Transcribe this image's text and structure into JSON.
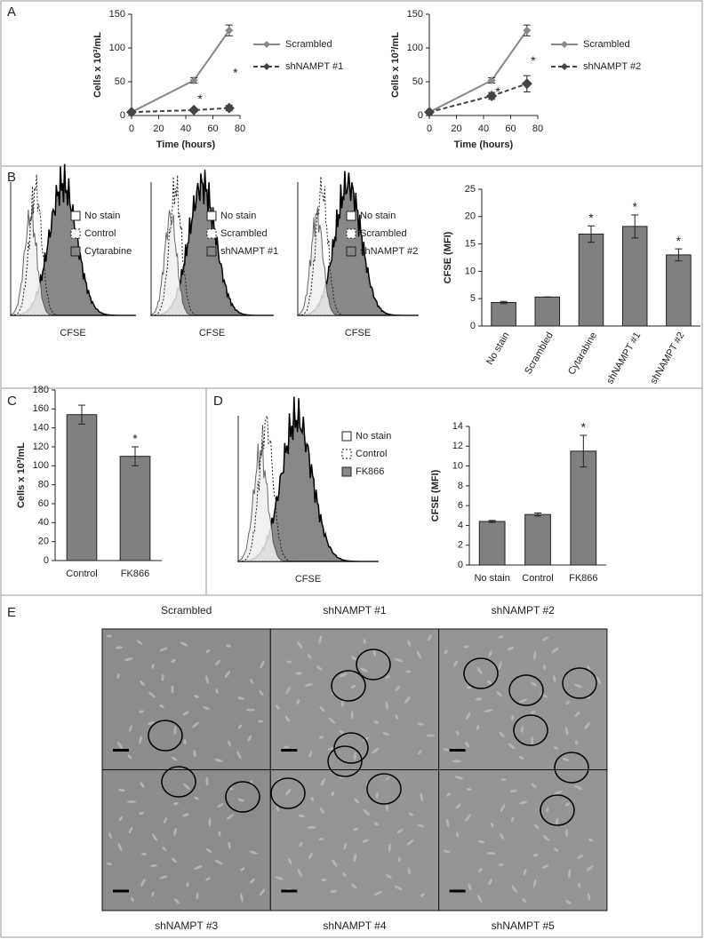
{
  "chart_data": [
    {
      "type": "line",
      "xlabel": "Time (hours)",
      "ylabel": "Cells x 10³/mL",
      "x": [
        0,
        46,
        72
      ],
      "xlim": [
        0,
        80
      ],
      "xticks": [
        0,
        20,
        40,
        60,
        80
      ],
      "ylim": [
        0,
        150
      ],
      "yticks": [
        0,
        50,
        100,
        150
      ],
      "series": [
        {
          "name": "Scrambled",
          "color": "#888888",
          "dashed": false,
          "values": [
            5,
            52,
            126
          ],
          "errors": [
            1,
            4,
            8
          ]
        },
        {
          "name": "shNAMPT #1",
          "color": "#444444",
          "dashed": true,
          "values": [
            5,
            8,
            11
          ],
          "errors": [
            1,
            1,
            4
          ],
          "annotations": [
            null,
            "*",
            "*"
          ]
        }
      ]
    },
    {
      "type": "line",
      "xlabel": "Time (hours)",
      "ylabel": "Cells x 10³/mL",
      "x": [
        0,
        46,
        72
      ],
      "xlim": [
        0,
        80
      ],
      "xticks": [
        0,
        20,
        40,
        60,
        80
      ],
      "ylim": [
        0,
        150
      ],
      "yticks": [
        0,
        50,
        100,
        150
      ],
      "series": [
        {
          "name": "Scrambled",
          "color": "#888888",
          "dashed": false,
          "values": [
            5,
            52,
            126
          ],
          "errors": [
            1,
            4,
            8
          ]
        },
        {
          "name": "shNAMPT #2",
          "color": "#444444",
          "dashed": true,
          "values": [
            5,
            29,
            47
          ],
          "errors": [
            1,
            5,
            12
          ],
          "annotations": [
            null,
            "*",
            "*"
          ]
        }
      ]
    },
    {
      "type": "bar",
      "ylabel": "CFSE (MFI)",
      "color": "#808080",
      "categories": [
        "No stain",
        "Scrambled",
        "Cytarabine",
        "shNAMPT #1",
        "shNAMPT #2"
      ],
      "values": [
        4.3,
        5.3,
        16.8,
        18.2,
        13.0
      ],
      "errors": [
        0.2,
        0,
        1.5,
        2.1,
        1.1
      ],
      "annotations": [
        null,
        null,
        "*",
        "*",
        "*"
      ],
      "ylim": [
        0,
        25
      ],
      "yticks": [
        0,
        5,
        10,
        15,
        20,
        25
      ],
      "rotate_labels": true
    },
    {
      "type": "bar",
      "ylabel": "Cells x 10³/mL",
      "color": "#808080",
      "categories": [
        "Control",
        "FK866"
      ],
      "values": [
        154,
        110
      ],
      "errors": [
        10,
        10
      ],
      "annotations": [
        null,
        "*"
      ],
      "ylim": [
        0,
        180
      ],
      "yticks": [
        0,
        20,
        40,
        60,
        80,
        100,
        120,
        140,
        160,
        180
      ],
      "rotate_labels": false
    },
    {
      "type": "bar",
      "ylabel": "CFSE (MFI)",
      "color": "#808080",
      "categories": [
        "No stain",
        "Control",
        "FK866"
      ],
      "values": [
        4.4,
        5.1,
        11.5
      ],
      "errors": [
        0.1,
        0.15,
        1.6
      ],
      "annotations": [
        null,
        null,
        "*"
      ],
      "ylim": [
        0,
        14
      ],
      "yticks": [
        0,
        2,
        4,
        6,
        8,
        10,
        12,
        14
      ],
      "rotate_labels": false
    }
  ],
  "panel_labels": [
    "A",
    "B",
    "C",
    "D",
    "E"
  ],
  "histograms": [
    {
      "legend": [
        "No stain",
        "Control",
        "Cytarabine"
      ],
      "xlabel": "CFSE"
    },
    {
      "legend": [
        "No stain",
        "Scrambled",
        "shNAMPT #1"
      ],
      "xlabel": "CFSE"
    },
    {
      "legend": [
        "No stain",
        "Scrambled",
        "shNAMPT #2"
      ],
      "xlabel": "CFSE"
    },
    {
      "legend": [
        "No stain",
        "Control",
        "FK866"
      ],
      "xlabel": "CFSE"
    }
  ],
  "micrographs": {
    "titles": [
      "Scrambled",
      "shNAMPT #1",
      "shNAMPT #2",
      "shNAMPT #3",
      "shNAMPT #4",
      "shNAMPT #5"
    ]
  }
}
